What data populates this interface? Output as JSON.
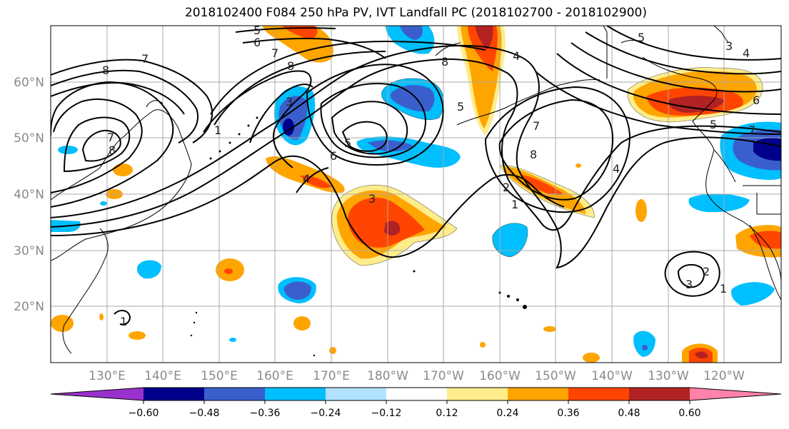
{
  "title": "2018102400 F084 250 hPa PV, IVT Landfall PC (2018102700 - 2018102900)",
  "lat_labels": [
    "60°N",
    "50°N",
    "40°N",
    "30°N",
    "20°N"
  ],
  "lon_labels": [
    "130°E",
    "140°E",
    "150°E",
    "160°E",
    "170°E",
    "180°W",
    "170°W",
    "160°W",
    "150°W",
    "140°W",
    "130°W",
    "120°W"
  ],
  "colorbar": {
    "tick_labels": [
      "−0.60",
      "−0.48",
      "−0.36",
      "−0.24",
      "−0.12",
      "0.12",
      "0.24",
      "0.36",
      "0.48",
      "0.60"
    ],
    "colors": [
      "#9932CC",
      "#00008B",
      "#3A5FCD",
      "#00BFFF",
      "#B0E2FF",
      "#FFFFFF",
      "#FFEC8B",
      "#FFA500",
      "#FF4500",
      "#B22222",
      "#FF82AB"
    ]
  },
  "pv_contour_labels": [
    "1",
    "2",
    "3",
    "4",
    "5",
    "6",
    "7",
    "8"
  ],
  "shading_colors": {
    "neg_strong": "#3A5FCD",
    "neg_mid": "#00BFFF",
    "neg_weak": "#B0E2FF",
    "pos_weak": "#FFEC8B",
    "pos_mid": "#FFA500",
    "pos_strong": "#FF4500",
    "pos_max": "#B22222",
    "dark": "#00008B"
  }
}
